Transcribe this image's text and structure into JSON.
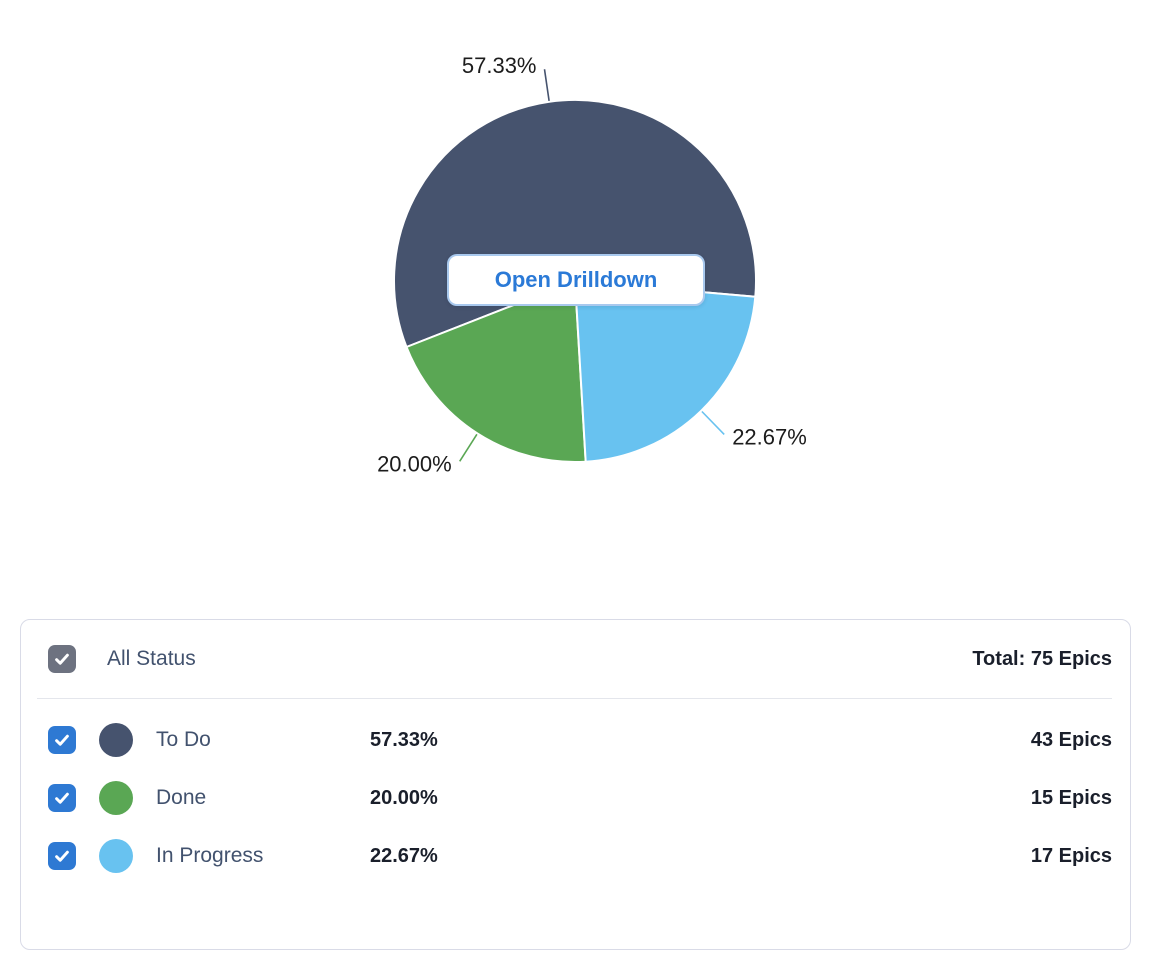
{
  "chart_data": {
    "type": "pie",
    "unit": "Epics",
    "total": 75,
    "slices": [
      {
        "label": "To Do",
        "count": 43,
        "percent": 57.33,
        "percent_label": "57.33%",
        "color": "#46536e"
      },
      {
        "label": "Done",
        "count": 15,
        "percent": 20.0,
        "percent_label": "20.00%",
        "color": "#5aa754"
      },
      {
        "label": "In Progress",
        "count": 17,
        "percent": 22.67,
        "percent_label": "22.67%",
        "color": "#68c2f0"
      }
    ],
    "start_angle_math_deg": -5,
    "sweep": "counterclockwise",
    "labels_outside": true,
    "label_color": "#1c1c1c",
    "slice_gap_color": "#ffffff"
  },
  "drilldown_button": {
    "label": "Open Drilldown",
    "text_color": "#2b7ad7",
    "border_color": "#a9c9ee"
  },
  "legend": {
    "header": {
      "label": "All Status",
      "total": "Total: 75 Epics",
      "checked": true,
      "checkbox_color": "#6d7280"
    },
    "row_checkbox_color": "#2e79d3",
    "rows": [
      {
        "label": "To Do",
        "percent_label": "57.33%",
        "count_label": "43 Epics",
        "color": "#46536e",
        "checked": true
      },
      {
        "label": "Done",
        "percent_label": "20.00%",
        "count_label": "15 Epics",
        "color": "#5aa754",
        "checked": true
      },
      {
        "label": "In Progress",
        "percent_label": "22.67%",
        "count_label": "17 Epics",
        "color": "#68c2f0",
        "checked": true
      }
    ]
  }
}
